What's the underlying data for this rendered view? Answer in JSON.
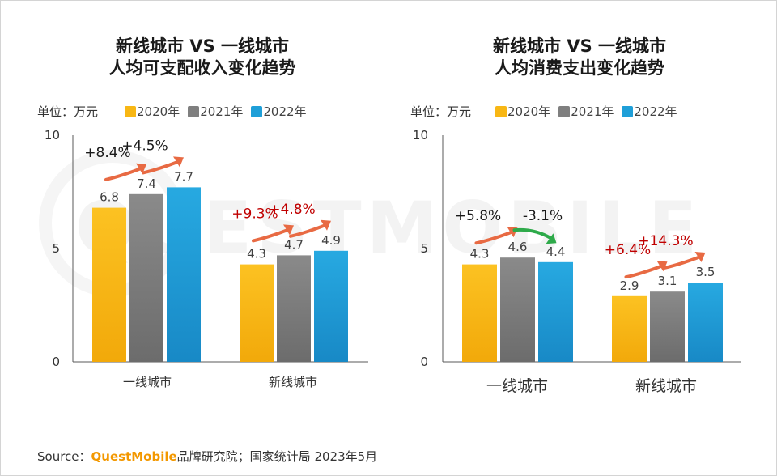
{
  "watermark": "QUESTMOBILE",
  "colors": {
    "y2020": "#f8b714",
    "y2021": "#7f7f7f",
    "y2022": "#1f9fd8",
    "arrow_up": "#e86a43",
    "arrow_down": "#2eaa4a",
    "pct_red": "#c00000",
    "pct_black": "#1a1a1a"
  },
  "left": {
    "title_line1": "新线城市 VS 一线城市",
    "title_line2": "人均可支配收入变化趋势",
    "unit": "单位：万元"
  },
  "right": {
    "title_line1": "新线城市 VS 一线城市",
    "title_line2": "人均消费支出变化趋势",
    "unit": "单位：万元"
  },
  "legend": [
    "2020年",
    "2021年",
    "2022年"
  ],
  "source": {
    "prefix": "Source：",
    "brand": "QuestMobile",
    "suffix": "品牌研究院；国家统计局 2023年5月"
  },
  "chart_data": [
    {
      "type": "bar",
      "title": "新线城市 VS 一线城市 人均可支配收入变化趋势",
      "ylabel": "单位：万元",
      "ylim": [
        0,
        10
      ],
      "yticks": [
        0,
        5,
        10
      ],
      "categories": [
        "一线城市",
        "新线城市"
      ],
      "series": [
        {
          "name": "2020年",
          "values": [
            6.8,
            4.3
          ]
        },
        {
          "name": "2021年",
          "values": [
            7.4,
            4.7
          ]
        },
        {
          "name": "2022年",
          "values": [
            7.7,
            4.9
          ]
        }
      ],
      "value_labels": [
        [
          "6.8",
          "7.4",
          "7.7"
        ],
        [
          "4.3",
          "4.7",
          "4.9"
        ]
      ],
      "annotations": [
        {
          "category": 0,
          "between": [
            0,
            1
          ],
          "text": "+8.4%",
          "direction": "up",
          "color": "black"
        },
        {
          "category": 0,
          "between": [
            1,
            2
          ],
          "text": "+4.5%",
          "direction": "up",
          "color": "black"
        },
        {
          "category": 1,
          "between": [
            0,
            1
          ],
          "text": "+9.3%",
          "direction": "up",
          "color": "red"
        },
        {
          "category": 1,
          "between": [
            1,
            2
          ],
          "text": "+4.8%",
          "direction": "up",
          "color": "red"
        }
      ]
    },
    {
      "type": "bar",
      "title": "新线城市 VS 一线城市 人均消费支出变化趋势",
      "ylabel": "单位：万元",
      "ylim": [
        0,
        10
      ],
      "yticks": [
        0,
        5,
        10
      ],
      "categories": [
        "一线城市",
        "新线城市"
      ],
      "series": [
        {
          "name": "2020年",
          "values": [
            4.3,
            2.9
          ]
        },
        {
          "name": "2021年",
          "values": [
            4.6,
            3.1
          ]
        },
        {
          "name": "2022年",
          "values": [
            4.4,
            3.5
          ]
        }
      ],
      "value_labels": [
        [
          "4.3",
          "4.6",
          "4.4"
        ],
        [
          "2.9",
          "3.1",
          "3.5"
        ]
      ],
      "annotations": [
        {
          "category": 0,
          "between": [
            0,
            1
          ],
          "text": "+5.8%",
          "direction": "up",
          "color": "black"
        },
        {
          "category": 0,
          "between": [
            1,
            2
          ],
          "text": "-3.1%",
          "direction": "down",
          "color": "black"
        },
        {
          "category": 1,
          "between": [
            0,
            1
          ],
          "text": "+6.4%",
          "direction": "up",
          "color": "red"
        },
        {
          "category": 1,
          "between": [
            1,
            2
          ],
          "text": "+14.3%",
          "direction": "up",
          "color": "red"
        }
      ]
    }
  ]
}
